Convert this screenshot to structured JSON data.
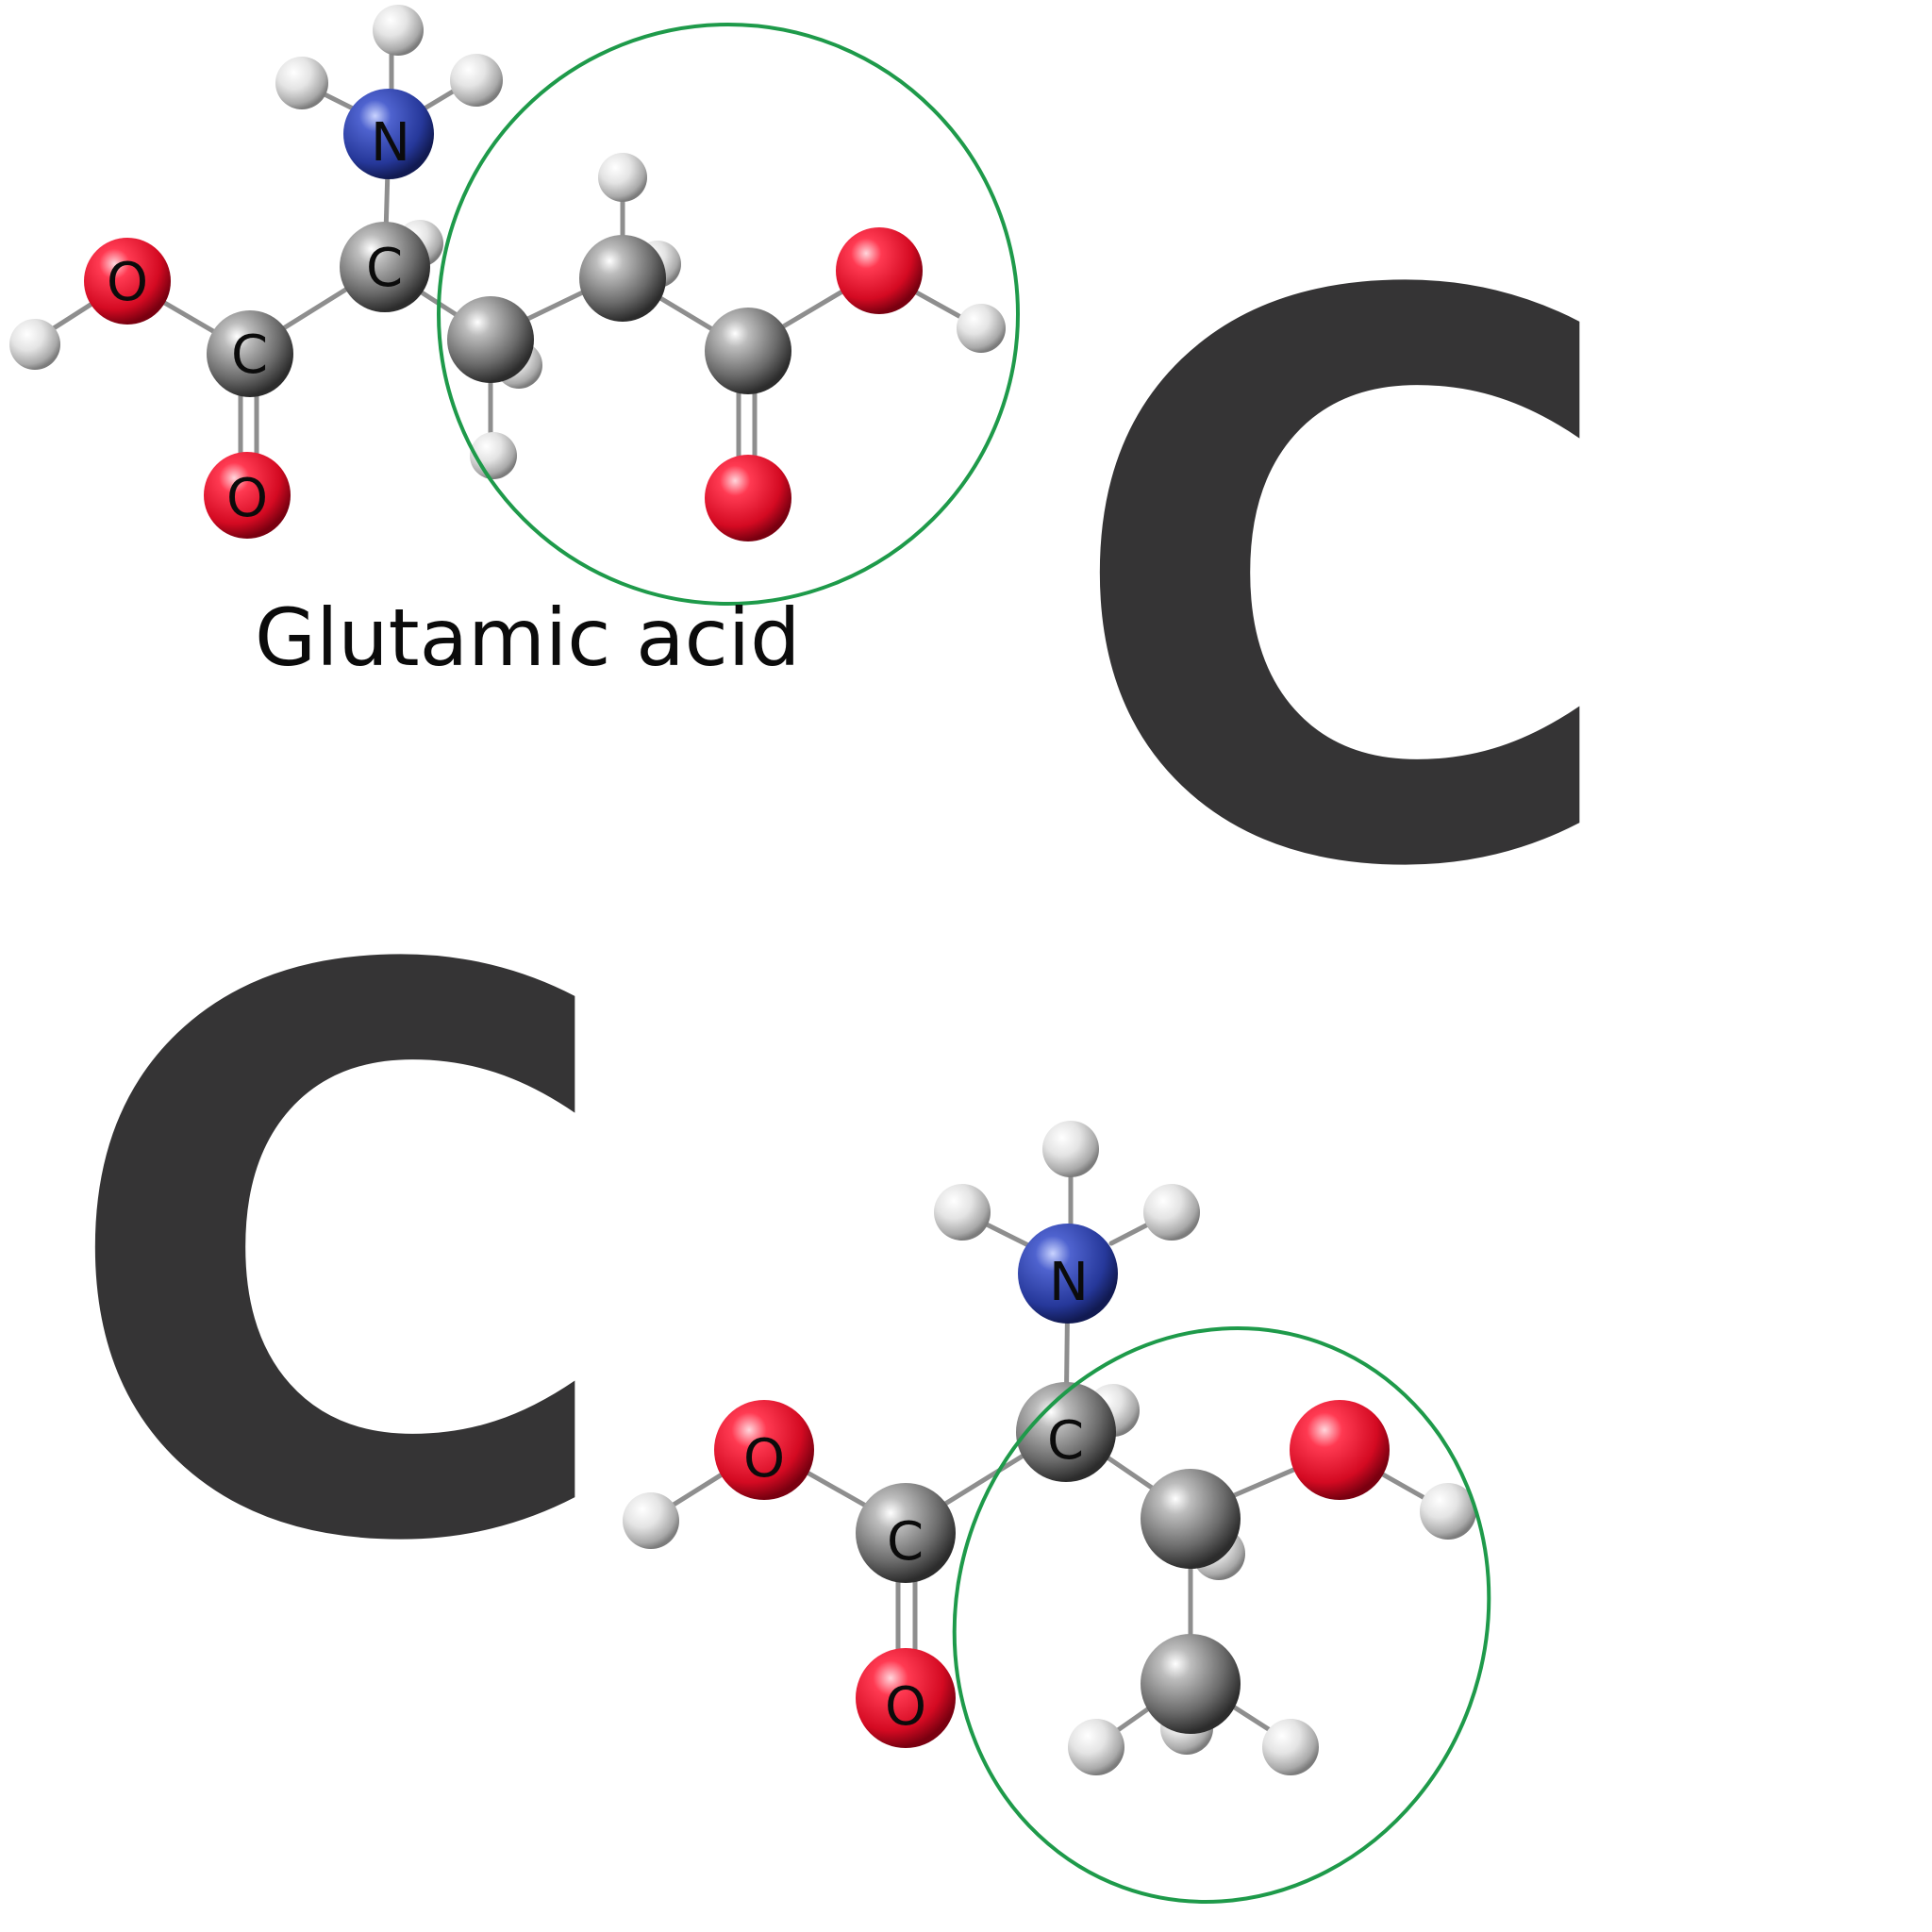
{
  "caption": "Glutamic acid",
  "big_letters": [
    "C",
    "C"
  ],
  "colors": {
    "oxygen": "#e8102a",
    "nitrogen": "#2c3f9c",
    "carbon": "#6c6c6c",
    "hydrogen": "#d8d8d8",
    "highlight": "#1e9a4a",
    "letter": "#353435"
  },
  "molecule_top": {
    "labels": {
      "n": "N",
      "ca": "C",
      "c1": "C",
      "o1": "O",
      "o2": "O"
    }
  },
  "molecule_bottom": {
    "labels": {
      "n": "N",
      "ca": "C",
      "c1": "C",
      "o1": "O",
      "o2": "O"
    }
  }
}
